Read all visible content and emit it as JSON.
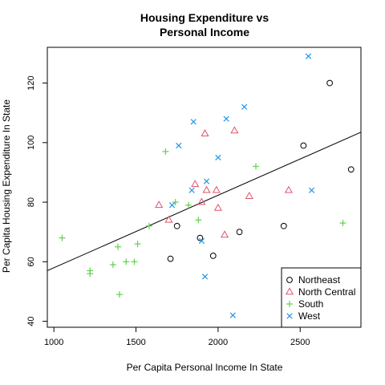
{
  "chart_data": {
    "type": "scatter",
    "title_line1": "Housing Expenditure vs",
    "title_line2": "Personal Income",
    "xlabel": "Per Capita Personal Income In State",
    "ylabel": "Per Capita Housing Expenditure In State",
    "xlim": [
      960,
      2870
    ],
    "ylim": [
      38,
      132
    ],
    "xticks": [
      1000,
      1500,
      2000,
      2500
    ],
    "yticks": [
      40,
      60,
      80,
      100,
      120
    ],
    "legend_position": "bottom-right",
    "regression_line": {
      "x": [
        960,
        2870
      ],
      "y": [
        57,
        103.5
      ]
    },
    "series": [
      {
        "name": "Northeast",
        "marker": "circle",
        "color": "#000000",
        "points": [
          [
            2680,
            120
          ],
          [
            2520,
            99
          ],
          [
            2810,
            91
          ],
          [
            2130,
            70
          ],
          [
            1710,
            61
          ],
          [
            1890,
            68
          ],
          [
            1970,
            62
          ],
          [
            2400,
            72
          ],
          [
            1750,
            72
          ]
        ]
      },
      {
        "name": "North Central",
        "marker": "triangle",
        "color": "#DF536B",
        "points": [
          [
            1920,
            103
          ],
          [
            2100,
            104
          ],
          [
            1860,
            86
          ],
          [
            1930,
            84
          ],
          [
            1990,
            84
          ],
          [
            1900,
            80
          ],
          [
            1640,
            79
          ],
          [
            1700,
            74
          ],
          [
            2000,
            78
          ],
          [
            2190,
            82
          ],
          [
            2430,
            84
          ],
          [
            2040,
            69
          ]
        ]
      },
      {
        "name": "South",
        "marker": "plus",
        "color": "#61D04F",
        "points": [
          [
            1050,
            68
          ],
          [
            1220,
            57
          ],
          [
            1220,
            56
          ],
          [
            1360,
            59
          ],
          [
            1390,
            65
          ],
          [
            1400,
            49
          ],
          [
            1440,
            60
          ],
          [
            1490,
            60
          ],
          [
            1510,
            66
          ],
          [
            1580,
            72
          ],
          [
            1680,
            97
          ],
          [
            1740,
            80
          ],
          [
            1820,
            79
          ],
          [
            1880,
            74
          ],
          [
            2230,
            92
          ],
          [
            2760,
            73
          ]
        ]
      },
      {
        "name": "West",
        "marker": "x",
        "color": "#2297E6",
        "points": [
          [
            2550,
            129
          ],
          [
            2160,
            112
          ],
          [
            2050,
            108
          ],
          [
            1850,
            107
          ],
          [
            1760,
            99
          ],
          [
            2000,
            95
          ],
          [
            1930,
            87
          ],
          [
            1840,
            84
          ],
          [
            1720,
            79
          ],
          [
            2570,
            84
          ],
          [
            1900,
            67
          ],
          [
            1920,
            55
          ],
          [
            2090,
            42
          ]
        ]
      }
    ]
  }
}
